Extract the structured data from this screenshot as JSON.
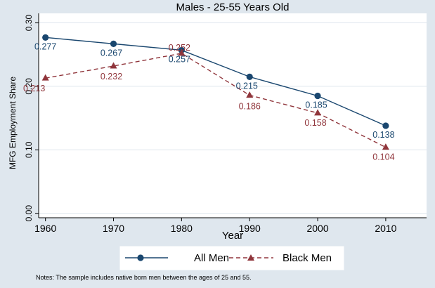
{
  "chart_data": {
    "type": "line",
    "title": "Males - 25-55 Years Old",
    "xlabel": "Year",
    "ylabel": "MFG Employment Share",
    "x": [
      1960,
      1970,
      1980,
      1990,
      2000,
      2010
    ],
    "x_ticks": [
      "1960",
      "1970",
      "1980",
      "1990",
      "2000",
      "2010"
    ],
    "y_ticks": [
      "0.00",
      "0.10",
      "0.20",
      "0.30"
    ],
    "xlim": [
      1959,
      2016
    ],
    "ylim": [
      -0.007,
      0.315
    ],
    "grid": true,
    "legend_position": "bottom",
    "series": [
      {
        "name": "All Men",
        "values": [
          0.277,
          0.267,
          0.257,
          0.215,
          0.185,
          0.138
        ],
        "labels": [
          "0.277",
          "0.267",
          "0.257",
          "0.215",
          "0.185",
          "0.138"
        ],
        "marker": "circle",
        "line_style": "solid",
        "color": "#1a476f"
      },
      {
        "name": "Black Men",
        "values": [
          0.213,
          0.232,
          0.252,
          0.186,
          0.158,
          0.104
        ],
        "labels": [
          "0.213",
          "0.232",
          "0.252",
          "0.186",
          "0.158",
          "0.104"
        ],
        "marker": "triangle",
        "line_style": "dashed",
        "color": "#90353b"
      }
    ],
    "note": "Notes: The sample includes native born men between the ages of 25 and 55."
  },
  "colors": {
    "outer_background": "#dfe7ee",
    "plot_background": "#ffffff",
    "grid": "#dfe7ee",
    "legend_background": "#ffffff"
  }
}
